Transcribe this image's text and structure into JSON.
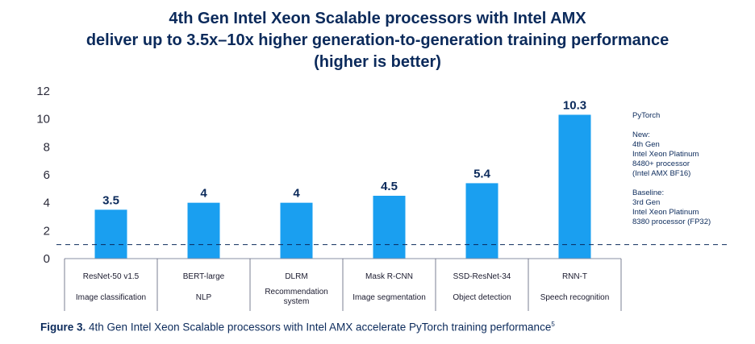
{
  "title_lines": [
    "4th Gen Intel Xeon Scalable processors with Intel AMX",
    "deliver up to 3.5x–10x higher generation-to-generation training performance",
    "(higher is better)"
  ],
  "chart_data": {
    "type": "bar",
    "categories": [
      "ResNet-50 v1.5",
      "BERT-large",
      "DLRM",
      "Mask R-CNN",
      "SSD-ResNet-34",
      "RNN-T"
    ],
    "subcategories": [
      "Image classification",
      "NLP",
      "Recommendation system",
      "Image segmentation",
      "Object detection",
      "Speech recognition"
    ],
    "values": [
      3.5,
      4,
      4,
      4.5,
      5.4,
      10.3
    ],
    "value_labels": [
      "3.5",
      "4",
      "4",
      "4.5",
      "5.4",
      "10.3"
    ],
    "baseline": 1,
    "ylim": [
      0,
      12
    ],
    "yticks": [
      0,
      2,
      4,
      6,
      8,
      10,
      12
    ],
    "bar_color": "#1a9ff0",
    "baseline_color": "#0b2a5b",
    "grid": false
  },
  "legend": {
    "framework": "PyTorch",
    "new_lines": [
      "New:",
      "4th Gen",
      "Intel Xeon Platinum",
      "8480+ processor",
      "(Intel AMX BF16)"
    ],
    "baseline_lines": [
      "Baseline:",
      "3rd Gen",
      "Intel Xeon Platinum",
      "8380 processor (FP32)"
    ]
  },
  "caption": {
    "figure": "Figure 3.",
    "text": "4th Gen Intel Xeon Scalable processors with Intel AMX accelerate PyTorch training performance",
    "footnote": "5"
  }
}
